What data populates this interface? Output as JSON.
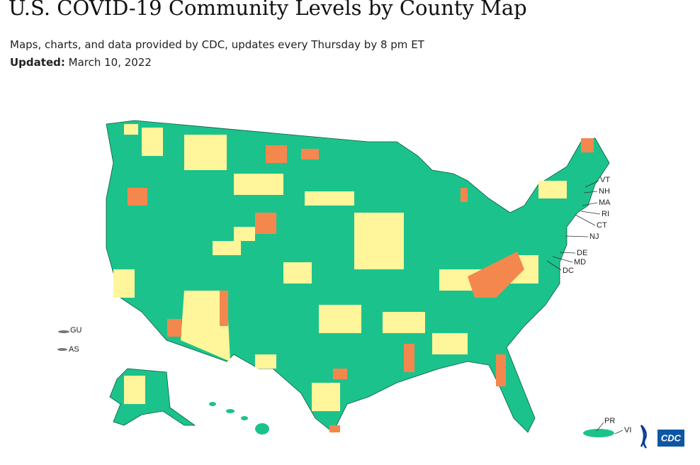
{
  "header": {
    "title": "U.S. COVID-19 Community Levels by County Map",
    "subtitle": "Maps, charts, and data provided by CDC, updates every Thursday by 8 pm ET",
    "updated_label": "Updated:",
    "updated_date": "March 10, 2022"
  },
  "map": {
    "labels": [
      "VT",
      "NH",
      "MA",
      "RI",
      "CT",
      "NJ",
      "DE",
      "MD",
      "DC",
      "GU",
      "AS",
      "PR",
      "VI"
    ],
    "logo": "CDC"
  }
}
